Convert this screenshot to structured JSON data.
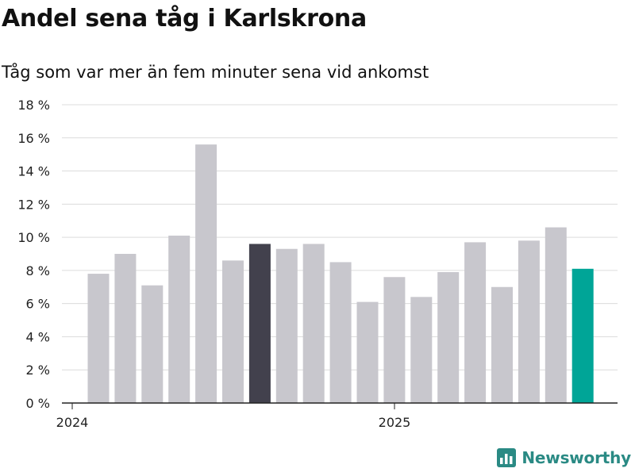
{
  "header": {
    "title": "Andel sena tåg i Karlskrona",
    "subtitle": "Tåg som var mer än fem minuter sena vid ankomst"
  },
  "brand": {
    "name": "Newsworthy",
    "logo_icon": "newsworthy-chart-icon"
  },
  "colors": {
    "bar_default": "#c8c7cd",
    "bar_highlight_dark": "#42414d",
    "bar_latest": "#00a597",
    "grid": "#dcdcdc",
    "axis": "#222222",
    "brand": "#2a8a84"
  },
  "chart_data": {
    "type": "bar",
    "title": "Andel sena tåg i Karlskrona",
    "subtitle": "Tåg som var mer än fem minuter sena vid ankomst",
    "x_tick_labels": [
      "2024",
      "2025"
    ],
    "y_tick_labels": [
      "0 %",
      "2 %",
      "4 %",
      "6 %",
      "8 %",
      "10 %",
      "12 %",
      "14 %",
      "16 %",
      "18 %"
    ],
    "ylim": [
      0,
      18
    ],
    "grid": true,
    "values": [
      7.8,
      9.0,
      7.1,
      10.1,
      15.6,
      8.6,
      9.6,
      9.3,
      9.6,
      8.5,
      6.1,
      7.6,
      6.4,
      7.9,
      9.7,
      7.0,
      9.8,
      10.6,
      8.1
    ],
    "highlight": {
      "dark_index": 6,
      "latest_index": 18
    }
  }
}
